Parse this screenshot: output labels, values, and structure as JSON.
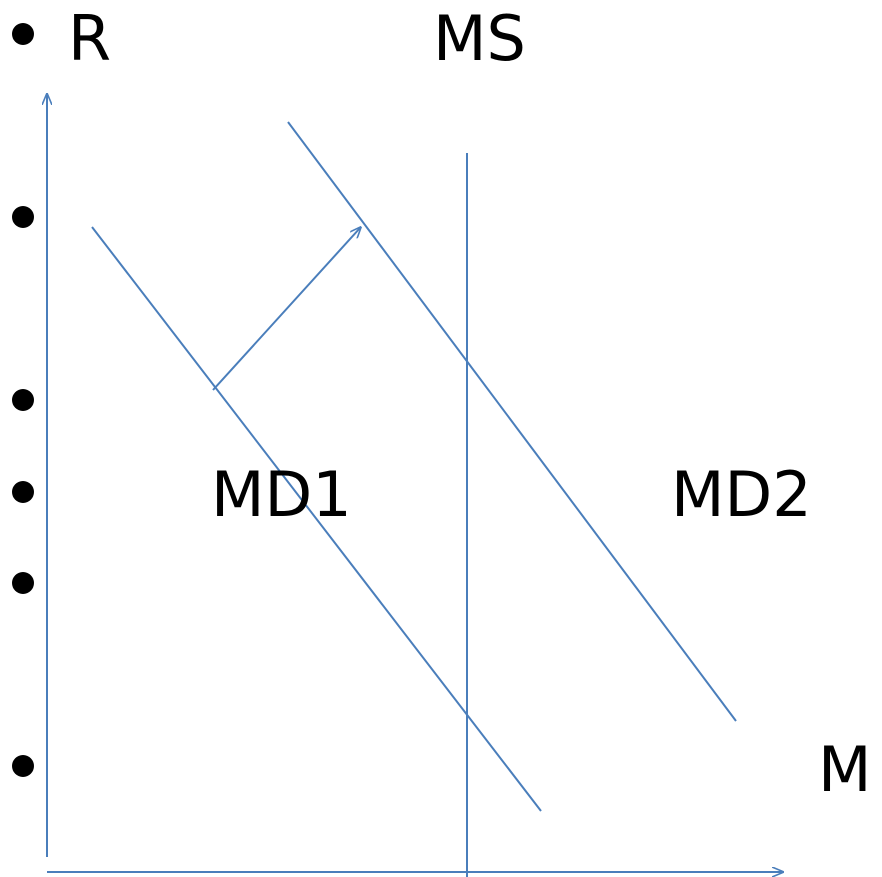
{
  "labels": {
    "r_axis": "R",
    "money_supply": "MS",
    "money_demand_1": "MD1",
    "money_demand_2": "MD2",
    "m_axis": "M"
  },
  "colors": {
    "line": "#4a7ebb",
    "text": "#000000",
    "bullet": "#000000"
  },
  "bullets": 6
}
